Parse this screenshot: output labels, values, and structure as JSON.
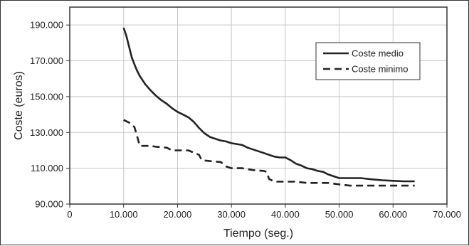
{
  "chart_data": {
    "type": "line",
    "xlabel": "Tiempo (seg.)",
    "ylabel": "Coste (euros)",
    "xlim": [
      0,
      70000
    ],
    "ylim": [
      90000,
      200000
    ],
    "x_ticks": [
      0,
      10000,
      20000,
      30000,
      40000,
      50000,
      60000,
      70000
    ],
    "x_tick_labels": [
      "0",
      "10.000",
      "20.000",
      "30.000",
      "40.000",
      "50.000",
      "60.000",
      "70.000"
    ],
    "y_ticks": [
      90000,
      110000,
      130000,
      150000,
      170000,
      190000
    ],
    "y_tick_labels": [
      "90.000",
      "110.000",
      "130.000",
      "150.000",
      "170.000",
      "190.000"
    ],
    "grid": true,
    "legend_position": "top-right",
    "series": [
      {
        "name": "Coste medio",
        "style": "solid",
        "color": "#222222",
        "points": [
          [
            10000,
            188500
          ],
          [
            10500,
            184000
          ],
          [
            11000,
            178000
          ],
          [
            11500,
            172000
          ],
          [
            12000,
            168000
          ],
          [
            12500,
            164500
          ],
          [
            13000,
            161500
          ],
          [
            14000,
            157000
          ],
          [
            15000,
            153500
          ],
          [
            16000,
            150500
          ],
          [
            17000,
            148000
          ],
          [
            18000,
            146000
          ],
          [
            19000,
            143500
          ],
          [
            20000,
            141500
          ],
          [
            21000,
            140000
          ],
          [
            22000,
            138500
          ],
          [
            23000,
            136000
          ],
          [
            24000,
            132500
          ],
          [
            25000,
            129500
          ],
          [
            26000,
            127500
          ],
          [
            27000,
            126500
          ],
          [
            28000,
            125500
          ],
          [
            29000,
            125000
          ],
          [
            30000,
            124000
          ],
          [
            31000,
            123500
          ],
          [
            32000,
            123000
          ],
          [
            33000,
            121500
          ],
          [
            34000,
            120500
          ],
          [
            35000,
            119500
          ],
          [
            36000,
            118500
          ],
          [
            37000,
            117500
          ],
          [
            38000,
            116500
          ],
          [
            39000,
            116000
          ],
          [
            40000,
            116000
          ],
          [
            41000,
            114500
          ],
          [
            42000,
            112500
          ],
          [
            43000,
            111500
          ],
          [
            44000,
            110000
          ],
          [
            45000,
            109500
          ],
          [
            46000,
            108500
          ],
          [
            47000,
            108000
          ],
          [
            48000,
            106500
          ],
          [
            49000,
            105500
          ],
          [
            50000,
            104500
          ],
          [
            52000,
            104500
          ],
          [
            54000,
            104500
          ],
          [
            56000,
            103800
          ],
          [
            58000,
            103300
          ],
          [
            60000,
            103000
          ],
          [
            62000,
            102700
          ],
          [
            64000,
            102700
          ]
        ]
      },
      {
        "name": "Coste minimo",
        "style": "dashed",
        "color": "#222222",
        "points": [
          [
            10000,
            137000
          ],
          [
            11000,
            135500
          ],
          [
            12000,
            133000
          ],
          [
            12500,
            128000
          ],
          [
            13000,
            122500
          ],
          [
            15000,
            122500
          ],
          [
            16000,
            122000
          ],
          [
            18000,
            121500
          ],
          [
            19000,
            120000
          ],
          [
            22000,
            120000
          ],
          [
            24000,
            117500
          ],
          [
            24500,
            114500
          ],
          [
            26000,
            114000
          ],
          [
            28000,
            113500
          ],
          [
            29000,
            111000
          ],
          [
            30000,
            110000
          ],
          [
            32000,
            110000
          ],
          [
            34000,
            109000
          ],
          [
            36000,
            108500
          ],
          [
            36500,
            108000
          ],
          [
            37000,
            104000
          ],
          [
            38000,
            102500
          ],
          [
            40000,
            102500
          ],
          [
            42000,
            102500
          ],
          [
            44000,
            101800
          ],
          [
            48000,
            101800
          ],
          [
            50000,
            101000
          ],
          [
            52000,
            100300
          ],
          [
            56000,
            100300
          ],
          [
            60000,
            100300
          ],
          [
            62000,
            100300
          ],
          [
            64000,
            100300
          ]
        ]
      }
    ]
  }
}
